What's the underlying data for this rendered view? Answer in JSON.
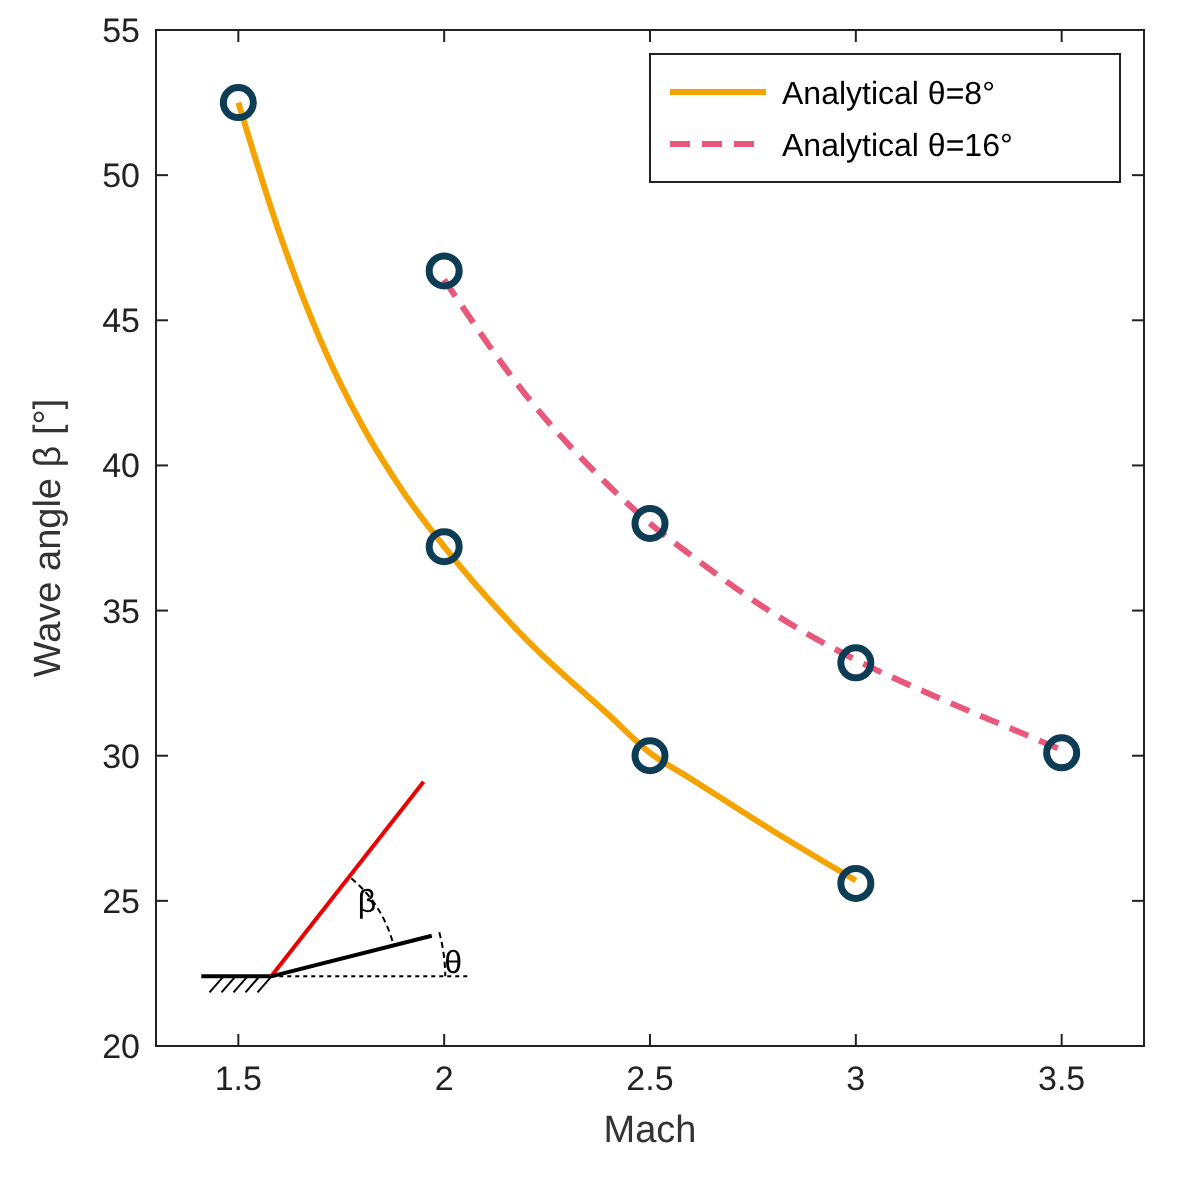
{
  "chart_data": {
    "type": "line",
    "xlabel": "Mach",
    "ylabel": "Wave angle β [°]",
    "xlim": [
      1.3,
      3.7
    ],
    "xticks": [
      1.5,
      2,
      2.5,
      3,
      3.5
    ],
    "ylim": [
      20,
      55
    ],
    "yticks": [
      20,
      25,
      30,
      35,
      40,
      45,
      50,
      55
    ],
    "grid": false,
    "legend": "top right",
    "annotations": [
      "β",
      "θ"
    ],
    "series": [
      {
        "name": "Analytical θ=8°",
        "color": "#f5a300",
        "line_style": "solid",
        "marker": "none",
        "x": [
          1.5,
          1.6,
          1.7,
          1.8,
          1.9,
          2.0,
          2.2,
          2.4,
          2.5,
          2.6,
          2.8,
          3.0
        ],
        "values": [
          52.5,
          48.0,
          44.3,
          41.4,
          39.1,
          37.2,
          34.0,
          31.4,
          30.1,
          29.2,
          27.4,
          25.7
        ]
      },
      {
        "name": "Analytical θ=16°",
        "color": "#e9577a",
        "line_style": "dashed",
        "marker": "none",
        "x": [
          2.0,
          2.2,
          2.4,
          2.5,
          2.6,
          2.8,
          3.0,
          3.2,
          3.4,
          3.5
        ],
        "values": [
          46.4,
          42.4,
          39.3,
          38.0,
          36.9,
          34.9,
          33.3,
          32.0,
          30.8,
          30.2
        ]
      },
      {
        "type": "scatter",
        "color": "#0d3c55",
        "marker": "circle",
        "x": [
          1.5,
          2,
          2.5,
          3,
          2,
          2.5,
          3,
          3.5
        ],
        "values": [
          52.5,
          37.2,
          30.0,
          25.6,
          46.7,
          38.0,
          33.2,
          30.1
        ]
      }
    ]
  }
}
